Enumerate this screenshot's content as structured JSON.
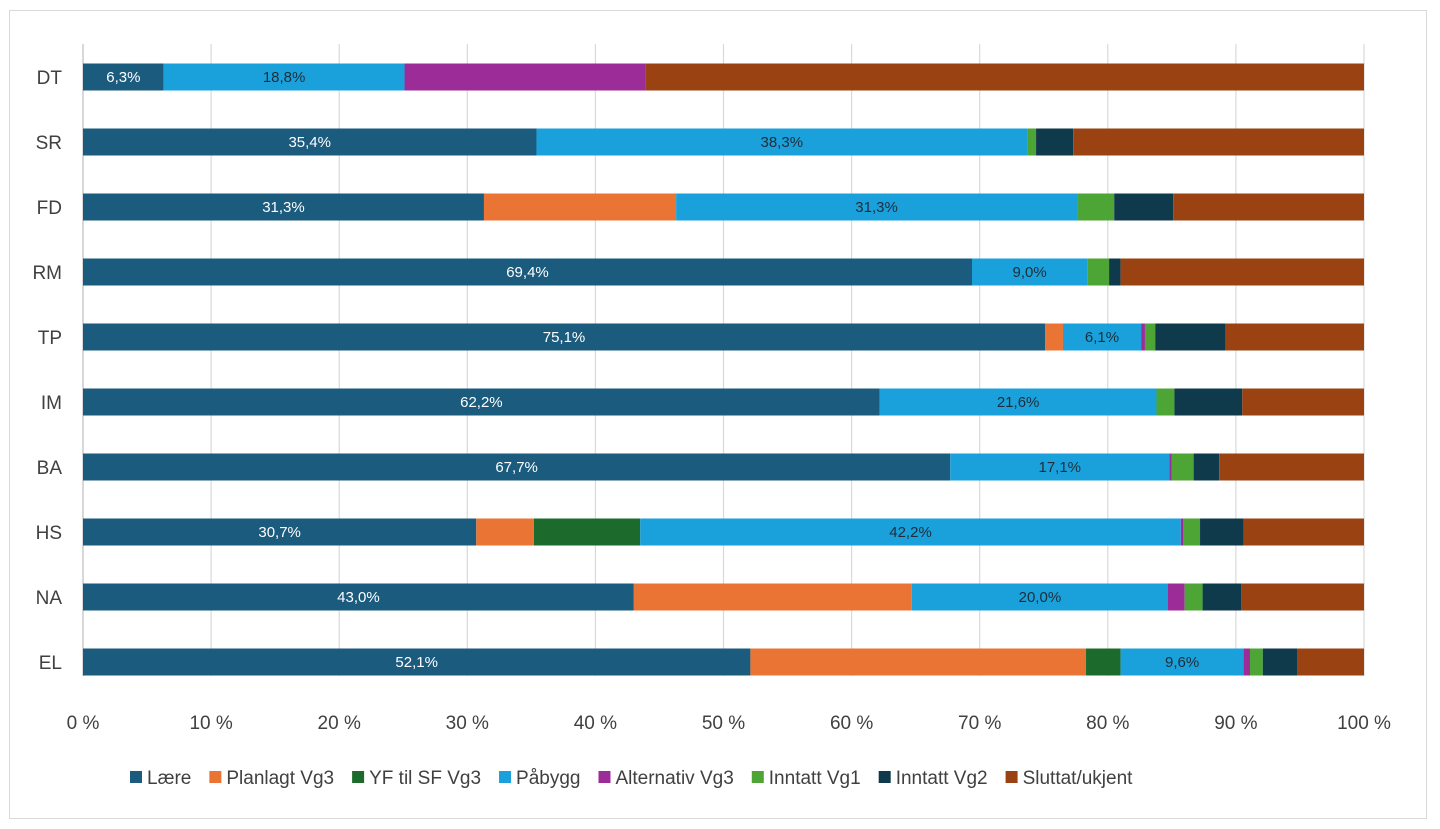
{
  "chart_data": {
    "type": "bar",
    "orientation": "horizontal",
    "stacked": "percent",
    "categories": [
      "DT",
      "SR",
      "FD",
      "RM",
      "TP",
      "IM",
      "BA",
      "HS",
      "NA",
      "EL"
    ],
    "x_ticks": [
      "0 %",
      "10 %",
      "20 %",
      "30 %",
      "40 %",
      "50 %",
      "60 %",
      "70 %",
      "80 %",
      "90 %",
      "100 %"
    ],
    "xlim": [
      0,
      100
    ],
    "grid": "vertical",
    "legend_position": "bottom",
    "title": "",
    "xlabel": "",
    "ylabel": "",
    "series": [
      {
        "name": "Lære",
        "color": "#1a5b7e",
        "label_color": "#ffffff",
        "values": [
          6.3,
          35.4,
          31.3,
          69.4,
          75.1,
          62.2,
          67.7,
          30.7,
          43.0,
          52.1
        ],
        "labels": [
          "6,3%",
          "35,4%",
          "31,3%",
          "69,4%",
          "75,1%",
          "62,2%",
          "67,7%",
          "30,7%",
          "43,0%",
          "52,1%"
        ]
      },
      {
        "name": "Planlagt Vg3",
        "color": "#e97434",
        "label_color": "#ffffff",
        "values": [
          0,
          0,
          15.0,
          0,
          1.4,
          0,
          0,
          4.5,
          21.7,
          26.2
        ],
        "labels": [
          "",
          "",
          "",
          "",
          "",
          "",
          "",
          "",
          "",
          ""
        ]
      },
      {
        "name": "YF til SF Vg3",
        "color": "#1c6b2c",
        "label_color": "#ffffff",
        "values": [
          0,
          0,
          0,
          0,
          0,
          0,
          0,
          8.3,
          0,
          2.7
        ],
        "labels": [
          "",
          "",
          "",
          "",
          "",
          "",
          "",
          "",
          "",
          ""
        ]
      },
      {
        "name": "Påbygg",
        "color": "#1aa1db",
        "label_color": "#1f2d3a",
        "values": [
          18.8,
          38.3,
          31.3,
          9.0,
          6.1,
          21.6,
          17.1,
          42.2,
          20.0,
          9.6
        ],
        "labels": [
          "18,8%",
          "38,3%",
          "31,3%",
          "9,0%",
          "6,1%",
          "21,6%",
          "17,1%",
          "42,2%",
          "20,0%",
          "9,6%"
        ]
      },
      {
        "name": "Alternativ Vg3",
        "color": "#9c2c98",
        "label_color": "#ffffff",
        "values": [
          18.8,
          0,
          0,
          0,
          0.3,
          0,
          0.2,
          0.2,
          1.3,
          0.5
        ],
        "labels": [
          "",
          "",
          "",
          "",
          "",
          "",
          "",
          "",
          "",
          ""
        ]
      },
      {
        "name": "Inntatt Vg1",
        "color": "#4ca535",
        "label_color": "#ffffff",
        "values": [
          0,
          0.7,
          2.9,
          1.7,
          0.8,
          1.4,
          1.7,
          1.3,
          1.4,
          1.0
        ],
        "labels": [
          "",
          "",
          "",
          "",
          "",
          "",
          "",
          "",
          "",
          ""
        ]
      },
      {
        "name": "Inntatt Vg2",
        "color": "#0f3a4c",
        "label_color": "#ffffff",
        "values": [
          0,
          2.9,
          4.6,
          0.9,
          5.5,
          5.3,
          2.0,
          3.4,
          3.0,
          2.7
        ],
        "labels": [
          "",
          "",
          "",
          "",
          "",
          "",
          "",
          "",
          "",
          ""
        ]
      },
      {
        "name": "Sluttat/ukjent",
        "color": "#9b4212",
        "label_color": "#ffffff",
        "values": [
          56.1,
          22.7,
          14.9,
          19.0,
          10.8,
          9.5,
          11.3,
          9.4,
          9.6,
          5.2
        ],
        "labels": [
          "",
          "",
          "",
          "",
          "",
          "",
          "",
          "",
          "",
          ""
        ]
      }
    ]
  }
}
